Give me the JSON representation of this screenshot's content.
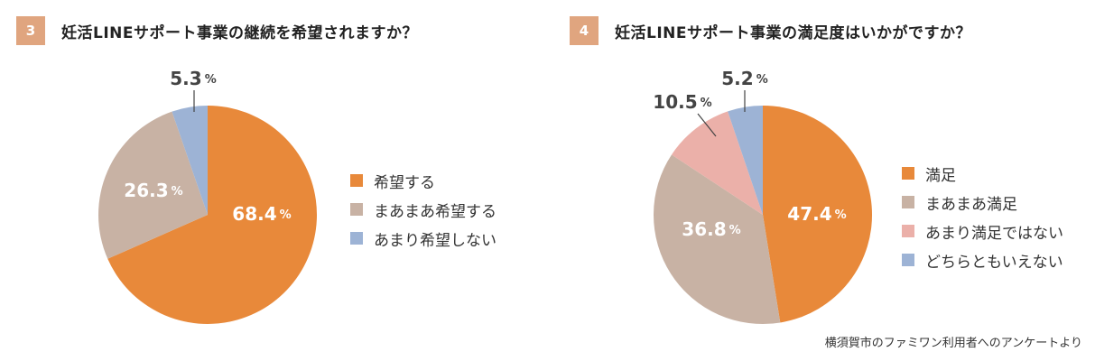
{
  "colors": {
    "accent": "#e0a57f",
    "orange": "#e8893a",
    "taupe": "#c8b2a4",
    "pink": "#ebb0a9",
    "blue": "#9db3d5"
  },
  "footnote": "横須賀市のファミワン利用者へのアンケートより",
  "chart_data": [
    {
      "type": "pie",
      "number": "3",
      "title": "妊活LINEサポート事業の継続を希望されますか？",
      "labels": [
        "希望する",
        "まあまあ希望する",
        "あまり希望しない"
      ],
      "values": [
        68.4,
        26.3,
        5.3
      ],
      "colors": [
        "#e8893a",
        "#c8b2a4",
        "#9db3d5"
      ],
      "value_labels": [
        {
          "num": "68.4",
          "unit": "%",
          "inside": true
        },
        {
          "num": "26.3",
          "unit": "%",
          "inside": true
        },
        {
          "num": "5.3",
          "unit": "%",
          "inside": false
        }
      ],
      "legend_placement": "right"
    },
    {
      "type": "pie",
      "number": "4",
      "title": "妊活LINEサポート事業の満足度はいかがですか？",
      "labels": [
        "満足",
        "まあまあ満足",
        "あまり満足ではない",
        "どちらともいえない"
      ],
      "values": [
        47.4,
        36.8,
        10.5,
        5.2
      ],
      "colors": [
        "#e8893a",
        "#c8b2a4",
        "#ebb0a9",
        "#9db3d5"
      ],
      "value_labels": [
        {
          "num": "47.4",
          "unit": "%",
          "inside": true
        },
        {
          "num": "36.8",
          "unit": "%",
          "inside": true
        },
        {
          "num": "10.5",
          "unit": "%",
          "inside": false
        },
        {
          "num": "5.2",
          "unit": "%",
          "inside": false
        }
      ],
      "legend_placement": "right"
    }
  ]
}
